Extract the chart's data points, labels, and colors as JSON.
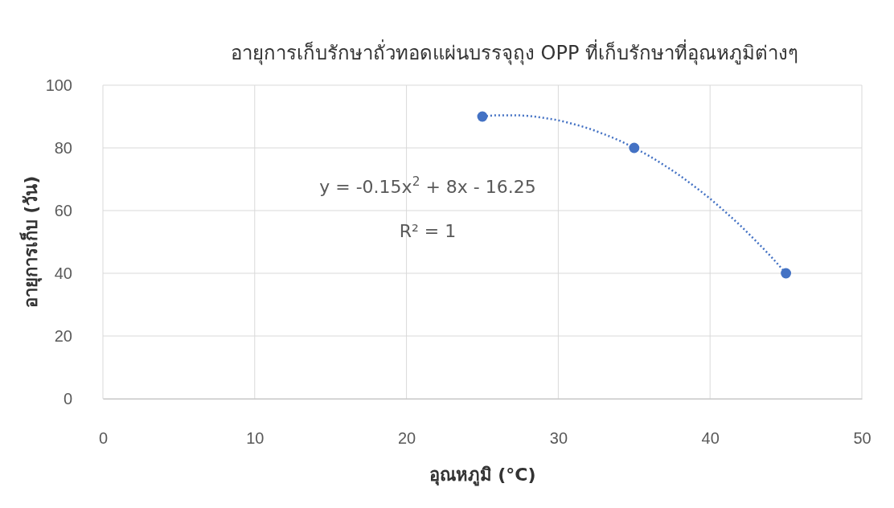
{
  "chart_data": {
    "type": "scatter",
    "title": "อายุการเก็บรักษาถั่วทอดแผ่นบรรจุถุง OPP ที่เก็บรักษาที่อุณหภูมิต่างๆ",
    "xlabel": "อุณหภูมิ (°C)",
    "ylabel": "อายุการเก็บ (วัน)",
    "annotations": [
      "y = -0.15x$^{2}$ + 8x - 16.25",
      "R² = 1"
    ],
    "x": [
      25,
      35,
      45
    ],
    "series": [
      {
        "color": "#4472c4",
        "marker": "circle",
        "values": [
          90,
          80,
          40
        ]
      },
      {
        "type": "line",
        "color": "#4472c4",
        "marker": "none",
        "line_style": "dotted",
        "x": [
          25,
          26,
          27,
          28,
          29,
          30,
          31,
          32,
          33,
          34,
          35,
          36,
          37,
          38,
          39,
          40,
          41,
          42,
          43,
          44,
          45
        ],
        "values": [
          90,
          90.4,
          90.4,
          90.2,
          89.6,
          88.8,
          87.6,
          86.2,
          84.4,
          82.4,
          80,
          77.4,
          74.4,
          71.2,
          67.6,
          63.8,
          59.6,
          55.2,
          50.4,
          45.4,
          40
        ]
      }
    ],
    "xlim": [
      0,
      50
    ],
    "xticks": [
      0,
      10,
      20,
      30,
      40,
      50
    ],
    "ylim": [
      0,
      100
    ],
    "yticks": [
      0,
      20,
      40,
      60,
      80,
      100
    ],
    "grid": true
  }
}
